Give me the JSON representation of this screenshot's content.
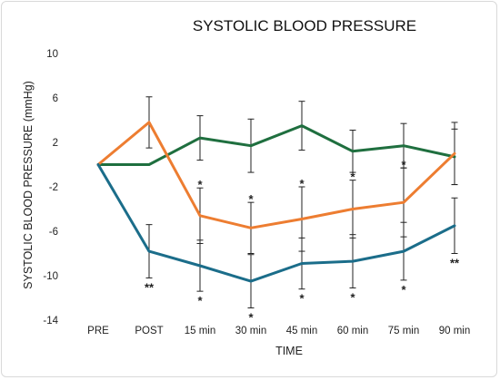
{
  "chart_data": {
    "type": "line",
    "title": "SYSTOLIC BLOOD PRESSURE",
    "xlabel": "TIME",
    "ylabel": "SYSTOLIC BLOOD  PRESSURE (mmHg)",
    "categories": [
      "PRE",
      "POST",
      "15 min",
      "30 min",
      "45 min",
      "60 min",
      "75 min",
      "90 min"
    ],
    "ylim": [
      -14,
      10
    ],
    "yticks": [
      10,
      6,
      2,
      -2,
      -6,
      -10,
      -14
    ],
    "grid": false,
    "legend": "none",
    "series": [
      {
        "color": "#1f6f3f",
        "values": [
          0,
          0,
          2.4,
          1.7,
          3.5,
          1.2,
          1.7,
          0.7
        ],
        "err": [
          null,
          null,
          2.0,
          2.4,
          2.2,
          1.9,
          2.0,
          2.5
        ]
      },
      {
        "color": "#ed7d31",
        "values": [
          0,
          3.8,
          -4.6,
          -5.7,
          -4.9,
          -4.0,
          -3.4,
          1.0
        ],
        "err": [
          null,
          2.3,
          2.5,
          2.3,
          2.9,
          2.6,
          3.1,
          2.8
        ]
      },
      {
        "color": "#1b6d8a",
        "values": [
          0,
          -7.8,
          -9.1,
          -10.5,
          -8.9,
          -8.7,
          -7.8,
          -5.5
        ],
        "err": [
          null,
          2.4,
          2.3,
          2.4,
          2.3,
          2.4,
          2.6,
          2.5
        ]
      }
    ],
    "annotations": [
      {
        "category": "POST",
        "text": "**",
        "position": "below"
      },
      {
        "category": "15 min",
        "text": "*",
        "position": "above"
      },
      {
        "category": "15 min",
        "text": "*",
        "position": "below"
      },
      {
        "category": "30 min",
        "text": "*",
        "position": "above"
      },
      {
        "category": "30 min",
        "text": "*",
        "position": "below"
      },
      {
        "category": "45 min",
        "text": "*",
        "position": "above"
      },
      {
        "category": "45 min",
        "text": "*",
        "position": "below"
      },
      {
        "category": "60 min",
        "text": "*",
        "position": "above"
      },
      {
        "category": "60 min",
        "text": "*",
        "position": "below"
      },
      {
        "category": "75 min",
        "text": "*",
        "position": "above"
      },
      {
        "category": "75 min",
        "text": "*",
        "position": "below"
      },
      {
        "category": "90 min",
        "text": "**",
        "position": "below"
      }
    ]
  }
}
